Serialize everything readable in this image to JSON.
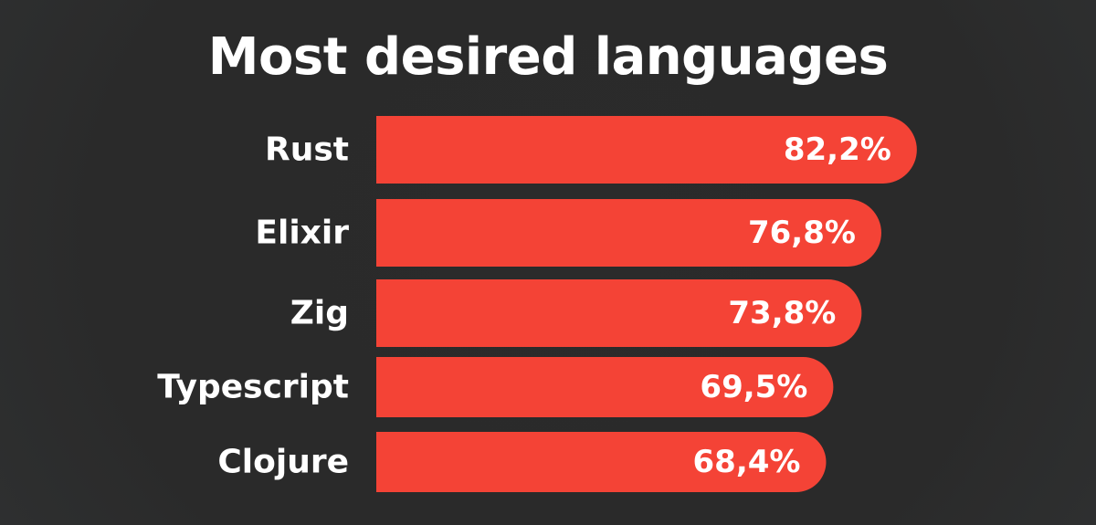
{
  "chart_data": {
    "type": "bar",
    "orientation": "horizontal",
    "title": "Most desired languages",
    "categories": [
      "Rust",
      "Elixir",
      "Zig",
      "Typescript",
      "Clojure"
    ],
    "values": [
      82.2,
      76.8,
      73.8,
      69.5,
      68.4
    ],
    "value_labels": [
      "82,2%",
      "76,8%",
      "73,8%",
      "69,5%",
      "68,4%"
    ],
    "unit": "%",
    "colors": {
      "bar": "#f44336",
      "background": "#2b2b2b",
      "text": "#ffffff"
    },
    "grid": false,
    "legend": "none"
  }
}
